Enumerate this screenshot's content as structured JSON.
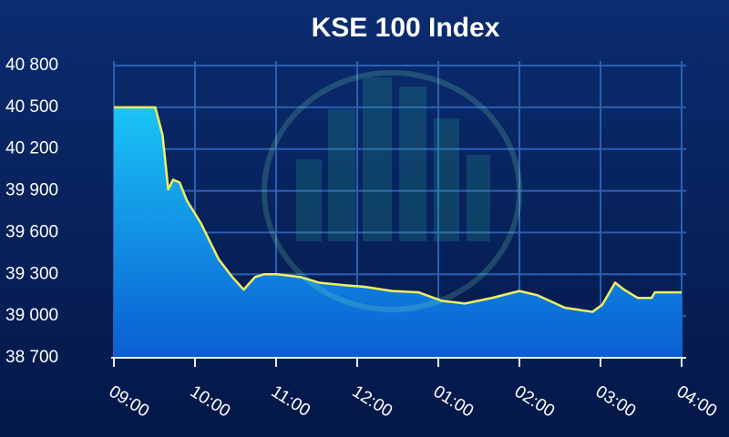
{
  "chart_data": {
    "type": "area",
    "title": "KSE 100 Index",
    "x": [
      9,
      9.51,
      9.6,
      9.67,
      9.73,
      9.81,
      9.9,
      10.07,
      10.29,
      10.46,
      10.6,
      10.74,
      10.85,
      11.02,
      11.3,
      11.53,
      11.87,
      12.09,
      12.43,
      12.76,
      13.04,
      13.33,
      13.66,
      14.0,
      14.22,
      14.56,
      14.9,
      15.02,
      15.18,
      15.29,
      15.46,
      15.63,
      15.67,
      16.0
    ],
    "values": [
      40500,
      40500,
      40300,
      39910,
      39980,
      39960,
      39830,
      39670,
      39410,
      39280,
      39190,
      39280,
      39300,
      39300,
      39280,
      39240,
      39220,
      39210,
      39180,
      39170,
      39110,
      39090,
      39130,
      39180,
      39150,
      39060,
      39030,
      39080,
      39240,
      39190,
      39130,
      39130,
      39170,
      39170
    ],
    "line_color": "#f2f060",
    "fill_top": "#1ac4f6",
    "fill_bottom": "#0a5ed2",
    "xlim": [
      9,
      16
    ],
    "xticks": [
      {
        "value": 9,
        "label": "09:00"
      },
      {
        "value": 10,
        "label": "10:00"
      },
      {
        "value": 11,
        "label": "11:00"
      },
      {
        "value": 12,
        "label": "12:00"
      },
      {
        "value": 13,
        "label": "01:00"
      },
      {
        "value": 14,
        "label": "02:00"
      },
      {
        "value": 15,
        "label": "03:00"
      },
      {
        "value": 16,
        "label": "04:00"
      }
    ],
    "ylim": [
      38700,
      40800
    ],
    "yticks": [
      {
        "value": 38700,
        "label": "38 700"
      },
      {
        "value": 39000,
        "label": "39 000"
      },
      {
        "value": 39300,
        "label": "39 300"
      },
      {
        "value": 39600,
        "label": "39 600"
      },
      {
        "value": 39900,
        "label": "39 900"
      },
      {
        "value": 40200,
        "label": "40 200"
      },
      {
        "value": 40500,
        "label": "40 500"
      },
      {
        "value": 40800,
        "label": "40 800"
      }
    ],
    "grid": true
  }
}
